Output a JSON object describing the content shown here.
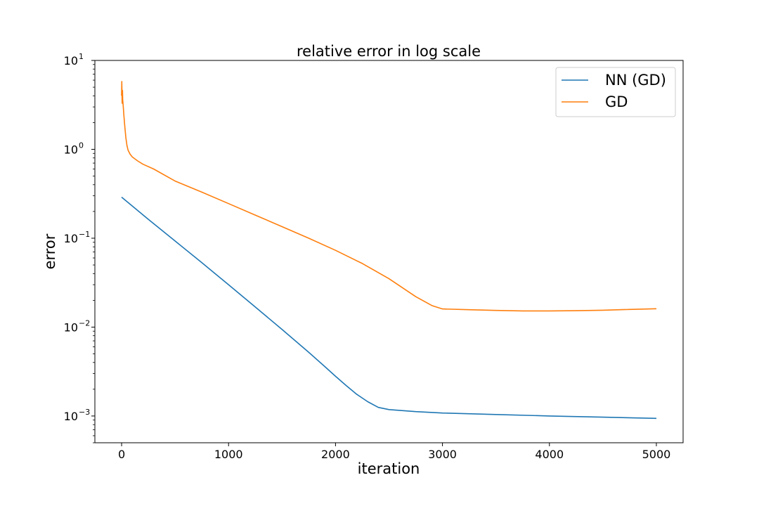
{
  "chart_data": {
    "type": "line",
    "title": "relative error in log scale",
    "xlabel": "iteration",
    "ylabel": "error",
    "yscale": "log",
    "xlim": [
      -250,
      5250
    ],
    "ylim": [
      0.0005,
      10
    ],
    "x_ticks": [
      0,
      1000,
      2000,
      3000,
      4000,
      5000
    ],
    "x_tick_labels": [
      "0",
      "1000",
      "2000",
      "3000",
      "4000",
      "5000"
    ],
    "y_ticks": [
      {
        "value": 10,
        "base": "10",
        "exp": "1"
      },
      {
        "value": 1,
        "base": "10",
        "exp": "0"
      },
      {
        "value": 0.1,
        "base": "10",
        "exp": "−1"
      },
      {
        "value": 0.01,
        "base": "10",
        "exp": "−2"
      },
      {
        "value": 0.001,
        "base": "10",
        "exp": "−3"
      }
    ],
    "grid": false,
    "legend_position": "top-right",
    "series": [
      {
        "name": "NN (GD)",
        "color": "#1f77b4",
        "x": [
          0,
          250,
          500,
          750,
          1000,
          1250,
          1500,
          1750,
          1900,
          2000,
          2100,
          2200,
          2300,
          2400,
          2500,
          2750,
          3000,
          3500,
          4000,
          4500,
          5000
        ],
        "y": [
          0.29,
          0.163,
          0.093,
          0.053,
          0.03,
          0.0168,
          0.0094,
          0.0052,
          0.0036,
          0.0028,
          0.0022,
          0.00175,
          0.00145,
          0.00125,
          0.00118,
          0.00112,
          0.00108,
          0.00104,
          0.001,
          0.00097,
          0.00094
        ]
      },
      {
        "name": "GD",
        "color": "#ff7f0e",
        "x": [
          0,
          2,
          5,
          8,
          10,
          15,
          20,
          30,
          40,
          50,
          60,
          80,
          100,
          150,
          200,
          300,
          500,
          750,
          1000,
          1250,
          1500,
          1750,
          2000,
          2250,
          2500,
          2750,
          2900,
          3000,
          3250,
          3500,
          3750,
          4000,
          4250,
          4500,
          4750,
          5000
        ],
        "y": [
          4.0,
          5.8,
          3.3,
          4.6,
          3.6,
          3.1,
          2.5,
          1.8,
          1.35,
          1.1,
          0.98,
          0.88,
          0.82,
          0.74,
          0.68,
          0.6,
          0.44,
          0.33,
          0.245,
          0.182,
          0.135,
          0.1,
          0.073,
          0.052,
          0.035,
          0.022,
          0.0175,
          0.016,
          0.0157,
          0.0154,
          0.0152,
          0.0152,
          0.0153,
          0.0155,
          0.0158,
          0.0161
        ]
      }
    ]
  }
}
